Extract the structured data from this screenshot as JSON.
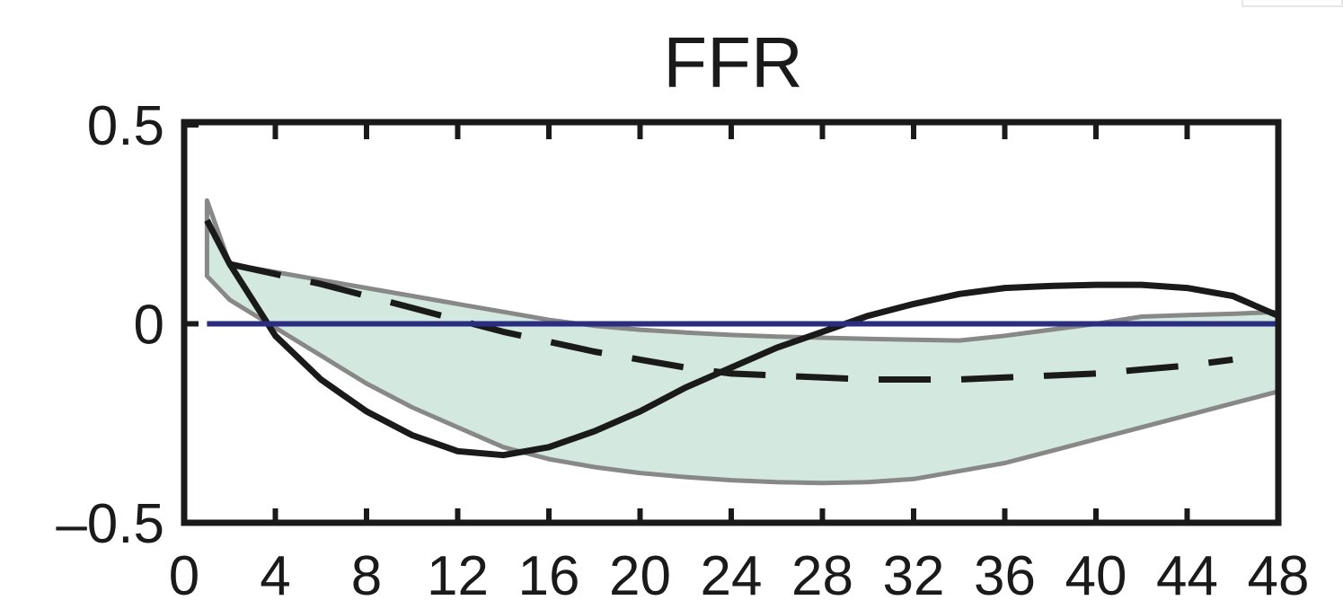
{
  "chart_data": {
    "type": "line",
    "title": "FFR",
    "xlabel": "",
    "ylabel": "",
    "xlim": [
      0,
      48
    ],
    "ylim": [
      -0.5,
      0.5
    ],
    "x_ticks": [
      0,
      4,
      8,
      12,
      16,
      20,
      24,
      28,
      32,
      36,
      40,
      44,
      48
    ],
    "x_tick_labels": [
      "0",
      "4",
      "8",
      "12",
      "16",
      "20",
      "24",
      "28",
      "32",
      "36",
      "40",
      "44",
      "48"
    ],
    "y_ticks": [
      -0.5,
      0,
      0.5
    ],
    "y_tick_labels": [
      "–0.5",
      "0",
      "0.5"
    ],
    "grid": false,
    "band": {
      "color": "#d3e8de",
      "edge_color": "#888888",
      "x": [
        1,
        2,
        4,
        6,
        8,
        10,
        12,
        14,
        16,
        18,
        20,
        22,
        24,
        26,
        28,
        30,
        32,
        34,
        36,
        38,
        40,
        42,
        44,
        46,
        48
      ],
      "upper": [
        0.31,
        0.15,
        0.13,
        0.11,
        0.09,
        0.07,
        0.05,
        0.03,
        0.01,
        -0.005,
        -0.015,
        -0.022,
        -0.028,
        -0.032,
        -0.035,
        -0.038,
        -0.04,
        -0.042,
        -0.03,
        -0.015,
        0.0,
        0.018,
        0.022,
        0.025,
        0.03
      ],
      "lower": [
        0.12,
        0.06,
        -0.01,
        -0.08,
        -0.15,
        -0.21,
        -0.26,
        -0.31,
        -0.34,
        -0.36,
        -0.375,
        -0.385,
        -0.393,
        -0.398,
        -0.4,
        -0.398,
        -0.39,
        -0.37,
        -0.35,
        -0.32,
        -0.29,
        -0.26,
        -0.23,
        -0.2,
        -0.17
      ]
    },
    "series": [
      {
        "color": "#1a1a1a",
        "style": "solid",
        "x": [
          1,
          2,
          4,
          6,
          8,
          10,
          12,
          14,
          16,
          18,
          20,
          22,
          24,
          26,
          28,
          30,
          32,
          34,
          36,
          38,
          40,
          42,
          44,
          46,
          48
        ],
        "values": [
          0.26,
          0.15,
          -0.03,
          -0.14,
          -0.22,
          -0.28,
          -0.32,
          -0.33,
          -0.31,
          -0.27,
          -0.22,
          -0.16,
          -0.11,
          -0.06,
          -0.02,
          0.02,
          0.05,
          0.075,
          0.09,
          0.095,
          0.098,
          0.098,
          0.09,
          0.07,
          0.02
        ]
      },
      {
        "color": "#1a1a1a",
        "style": "dashed",
        "x": [
          2,
          4,
          6,
          8,
          10,
          12,
          14,
          16,
          18,
          20,
          22,
          24,
          26,
          28,
          30,
          32,
          34,
          36,
          38,
          40,
          42,
          44,
          46
        ],
        "values": [
          0.15,
          0.125,
          0.1,
          0.07,
          0.04,
          0.01,
          -0.02,
          -0.045,
          -0.07,
          -0.09,
          -0.11,
          -0.125,
          -0.13,
          -0.135,
          -0.14,
          -0.14,
          -0.14,
          -0.135,
          -0.13,
          -0.125,
          -0.115,
          -0.105,
          -0.09
        ]
      },
      {
        "color": "#2a2d80",
        "style": "solid",
        "x": [
          1,
          48
        ],
        "values": [
          0,
          0
        ]
      }
    ]
  }
}
